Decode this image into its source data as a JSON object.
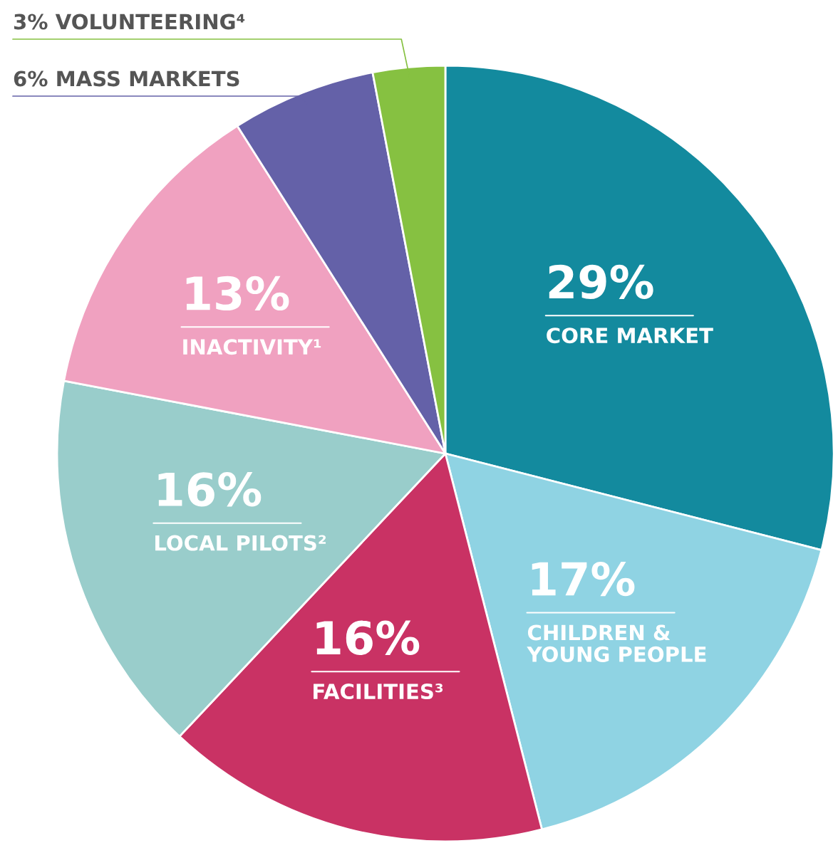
{
  "chart_data": {
    "type": "pie",
    "categories": [
      "CORE MARKET",
      "CHILDREN &\nYOUNG PEOPLE",
      "FACILITIES³",
      "LOCAL PILOTS²",
      "INACTIVITY¹",
      "MASS MARKETS",
      "VOLUNTEERING⁴"
    ],
    "values": [
      29,
      17,
      16,
      16,
      13,
      6,
      3
    ],
    "value_labels": [
      "29%",
      "17%",
      "16%",
      "16%",
      "13%",
      "6%",
      "3%"
    ],
    "colors": [
      "#138a9e",
      "#8fd3e3",
      "#c93264",
      "#99cdcb",
      "#f0a1c0",
      "#6461a8",
      "#86c141"
    ]
  }
}
